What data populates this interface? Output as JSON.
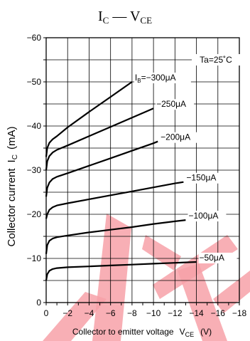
{
  "chart_data": {
    "type": "line",
    "title_main": "I",
    "title_main_sub": "C",
    "title_sep": " — ",
    "title_second": "V",
    "title_second_sub": "CE",
    "annotation": "Ta=25˚C",
    "ylabel_main": "Collector current",
    "ylabel_symbol": "I",
    "ylabel_symbol_sub": "C",
    "ylabel_unit": "(mA)",
    "xlabel_main": "Collector to emitter voltage",
    "xlabel_symbol": "V",
    "xlabel_symbol_sub": "CE",
    "xlabel_unit": "(V)",
    "xlim": [
      0,
      -18
    ],
    "ylim": [
      0,
      -60
    ],
    "grid": true,
    "x_ticks": [
      0,
      -2,
      -4,
      -6,
      -8,
      -10,
      -12,
      -14,
      -16,
      -18
    ],
    "x_tick_labels": [
      "0",
      "−2",
      "−4",
      "−6",
      "−8",
      "−10",
      "−12",
      "−14",
      "−16",
      "−18"
    ],
    "y_ticks": [
      0,
      -10,
      -20,
      -30,
      -40,
      -50,
      -60
    ],
    "y_tick_labels": [
      "0",
      "−10",
      "−20",
      "−30",
      "−40",
      "−50",
      "−60"
    ],
    "series": [
      {
        "label_prefix": "I",
        "label_sub": "B",
        "label_value": "=−300μA",
        "points": [
          [
            0,
            -33
          ],
          [
            -0.1,
            -35
          ],
          [
            -0.3,
            -36.2
          ],
          [
            -0.6,
            -37
          ],
          [
            -1,
            -37.7
          ],
          [
            -2,
            -39.7
          ],
          [
            -4,
            -43.2
          ],
          [
            -6,
            -46.6
          ],
          [
            -8,
            -50
          ]
        ]
      },
      {
        "label_value": "−250μA",
        "points": [
          [
            0,
            -30
          ],
          [
            -0.1,
            -32
          ],
          [
            -0.3,
            -33.2
          ],
          [
            -0.6,
            -34
          ],
          [
            -1,
            -34.6
          ],
          [
            -2,
            -35.6
          ],
          [
            -4,
            -37.7
          ],
          [
            -6,
            -39.8
          ],
          [
            -8,
            -41.9
          ],
          [
            -10,
            -44
          ]
        ]
      },
      {
        "label_value": "−200μA",
        "points": [
          [
            0,
            -24
          ],
          [
            -0.1,
            -26
          ],
          [
            -0.3,
            -27.2
          ],
          [
            -0.6,
            -28
          ],
          [
            -1,
            -28.5
          ],
          [
            -2,
            -29.3
          ],
          [
            -4,
            -31
          ],
          [
            -6,
            -32.7
          ],
          [
            -8,
            -34.4
          ],
          [
            -10,
            -36.1
          ],
          [
            -10.4,
            -36.5
          ]
        ]
      },
      {
        "label_value": "−150μA",
        "points": [
          [
            0,
            -19
          ],
          [
            -0.1,
            -20
          ],
          [
            -0.3,
            -21
          ],
          [
            -0.6,
            -21.6
          ],
          [
            -1,
            -22
          ],
          [
            -2,
            -22.5
          ],
          [
            -4,
            -23.4
          ],
          [
            -6,
            -24.3
          ],
          [
            -8,
            -25.2
          ],
          [
            -10,
            -26.1
          ],
          [
            -12,
            -27
          ],
          [
            -12.8,
            -27.3
          ]
        ]
      },
      {
        "label_value": "−100μA",
        "points": [
          [
            0,
            -11
          ],
          [
            -0.1,
            -13
          ],
          [
            -0.3,
            -14
          ],
          [
            -0.6,
            -14.5
          ],
          [
            -1,
            -14.8
          ],
          [
            -2,
            -15.2
          ],
          [
            -4,
            -15.9
          ],
          [
            -6,
            -16.5
          ],
          [
            -8,
            -17.1
          ],
          [
            -10,
            -17.8
          ],
          [
            -12,
            -18.4
          ],
          [
            -13,
            -18.7
          ]
        ]
      },
      {
        "label_value": "−50μA",
        "points": [
          [
            0,
            -5
          ],
          [
            -0.1,
            -6.4
          ],
          [
            -0.3,
            -7.2
          ],
          [
            -0.6,
            -7.6
          ],
          [
            -1,
            -7.8
          ],
          [
            -2,
            -8
          ],
          [
            -4,
            -8.2
          ],
          [
            -6,
            -8.4
          ],
          [
            -8,
            -8.6
          ],
          [
            -10,
            -8.8
          ],
          [
            -12,
            -9
          ],
          [
            -14,
            -9.2
          ]
        ]
      }
    ]
  },
  "colors": {
    "axis": "#000000",
    "grid": "#000000",
    "curve": "#000000",
    "watermark": "#f7a1a8"
  }
}
